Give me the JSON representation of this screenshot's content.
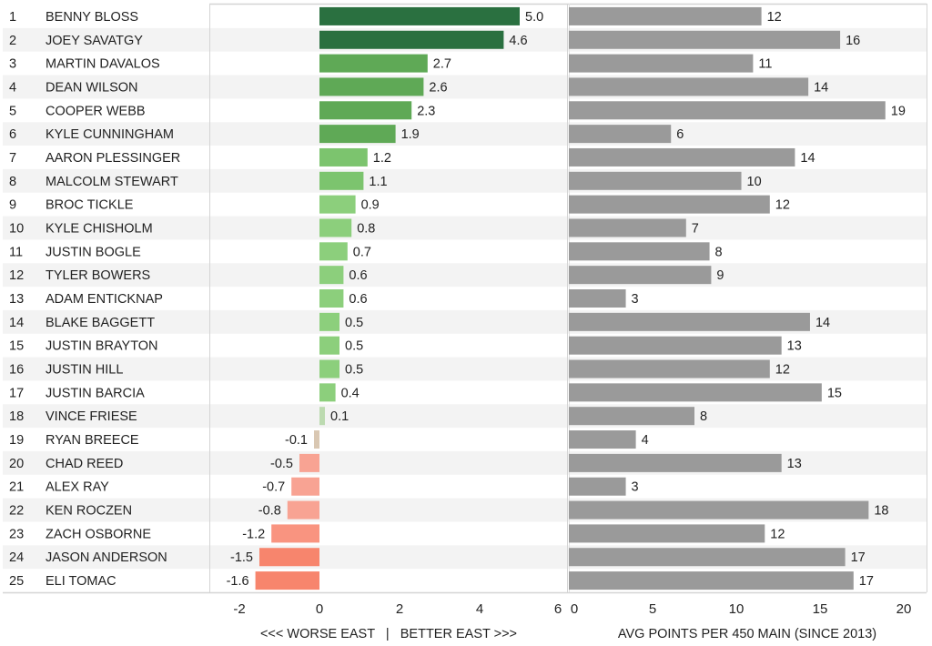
{
  "chart_data": [
    {
      "type": "bar",
      "orientation": "horizontal",
      "title": "",
      "xlabel": "<<< WORSE EAST   |   BETTER EAST >>>",
      "ylabel": "",
      "xlim": [
        -2.8,
        6.2
      ],
      "xticks": [
        -2,
        0,
        2,
        4,
        6
      ],
      "categories": [
        "BENNY BLOSS",
        "JOEY SAVATGY",
        "MARTIN DAVALOS",
        "DEAN WILSON",
        "COOPER WEBB",
        "KYLE CUNNINGHAM",
        "AARON PLESSINGER",
        "MALCOLM STEWART",
        "BROC TICKLE",
        "KYLE CHISHOLM",
        "JUSTIN BOGLE",
        "TYLER BOWERS",
        "ADAM ENTICKNAP",
        "BLAKE BAGGETT",
        "JUSTIN BRAYTON",
        "JUSTIN HILL",
        "JUSTIN BARCIA",
        "VINCE FRIESE",
        "RYAN BREECE",
        "CHAD REED",
        "ALEX RAY",
        "KEN ROCZEN",
        "ZACH OSBORNE",
        "JASON ANDERSON",
        "ELI TOMAC"
      ],
      "ranks": [
        "1",
        "2",
        "3",
        "4",
        "5",
        "6",
        "7",
        "8",
        "9",
        "10",
        "11",
        "12",
        "13",
        "14",
        "15",
        "16",
        "17",
        "18",
        "19",
        "20",
        "21",
        "22",
        "23",
        "24",
        "25"
      ],
      "values": [
        5.0,
        4.6,
        2.7,
        2.6,
        2.3,
        1.9,
        1.2,
        1.1,
        0.9,
        0.8,
        0.7,
        0.6,
        0.6,
        0.5,
        0.5,
        0.5,
        0.4,
        0.1,
        -0.1,
        -0.5,
        -0.7,
        -0.8,
        -1.2,
        -1.5,
        -1.6
      ],
      "labels": [
        "5.0",
        "4.6",
        "2.7",
        "2.6",
        "2.3",
        "1.9",
        "1.2",
        "1.1",
        "0.9",
        "0.8",
        "0.7",
        "0.6",
        "0.6",
        "0.5",
        "0.5",
        "0.5",
        "0.4",
        "0.1",
        "-0.1",
        "-0.5",
        "-0.7",
        "-0.8",
        "-1.2",
        "-1.5",
        "-1.6"
      ],
      "colors": [
        "#2a7040",
        "#2a7040",
        "#5fa956",
        "#5fa956",
        "#5fa956",
        "#5fa956",
        "#7cc46e",
        "#7cc46e",
        "#8ccf7c",
        "#8ccf7c",
        "#8ccf7c",
        "#8ccf7c",
        "#8ccf7c",
        "#8ccf7c",
        "#8ccf7c",
        "#8ccf7c",
        "#8ccf7c",
        "#bcdab0",
        "#d9c7b2",
        "#f8a393",
        "#f8a393",
        "#f8a393",
        "#f99480",
        "#f7856d",
        "#f7856d"
      ],
      "grid": false,
      "legend": "none"
    },
    {
      "type": "bar",
      "orientation": "horizontal",
      "title": "",
      "xlabel": "AVG POINTS PER 450 MAIN (SINCE 2013)",
      "ylabel": "",
      "xlim": [
        0,
        21.4
      ],
      "xticks": [
        0,
        5,
        10,
        15,
        20
      ],
      "categories": [
        "BENNY BLOSS",
        "JOEY SAVATGY",
        "MARTIN DAVALOS",
        "DEAN WILSON",
        "COOPER WEBB",
        "KYLE CUNNINGHAM",
        "AARON PLESSINGER",
        "MALCOLM STEWART",
        "BROC TICKLE",
        "KYLE CHISHOLM",
        "JUSTIN BOGLE",
        "TYLER BOWERS",
        "ADAM ENTICKNAP",
        "BLAKE BAGGETT",
        "JUSTIN BRAYTON",
        "JUSTIN HILL",
        "JUSTIN BARCIA",
        "VINCE FRIESE",
        "RYAN BREECE",
        "CHAD REED",
        "ALEX RAY",
        "KEN ROCZEN",
        "ZACH OSBORNE",
        "JASON ANDERSON",
        "ELI TOMAC"
      ],
      "values": [
        11.5,
        16.2,
        11.0,
        14.3,
        18.9,
        6.1,
        13.5,
        10.3,
        12.0,
        7.0,
        8.4,
        8.5,
        3.4,
        14.4,
        12.7,
        12.0,
        15.1,
        7.5,
        4.0,
        12.7,
        3.4,
        17.9,
        11.7,
        16.5,
        17.0
      ],
      "labels": [
        "12",
        "16",
        "11",
        "14",
        "19",
        "6",
        "14",
        "10",
        "12",
        "7",
        "8",
        "9",
        "3",
        "14",
        "13",
        "12",
        "15",
        "8",
        "4",
        "13",
        "3",
        "18",
        "12",
        "17",
        "17"
      ],
      "color": "#9a9a9a",
      "grid": false,
      "legend": "none"
    }
  ],
  "colors": {
    "row_stripe": "#f3f3f3",
    "frame": "#d4d4d4",
    "text": "#222222"
  }
}
